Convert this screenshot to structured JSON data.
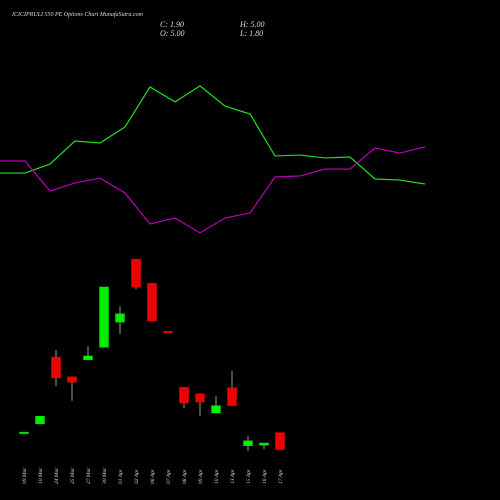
{
  "chart_data": [
    {
      "type": "candlestick",
      "title": "ICICIPRULI 550 PE Options Chart MunafaSutra.com",
      "ohlc_labels": [
        "C: 1.90",
        "H: 5.00",
        "O: 5.00",
        "L: 1.80"
      ],
      "categories": [
        "09 Mar",
        "10 Mar",
        "24 Mar",
        "25 Mar",
        "27 Mar",
        "30 Mar",
        "01 Apr",
        "02 Apr",
        "06 Apr",
        "07 Apr",
        "08 Apr",
        "09 Apr",
        "10 Apr",
        "13 Apr",
        "15 Apr",
        "16 Apr",
        "17 Apr"
      ],
      "open": [
        5.0,
        6.6,
        18.8,
        15.2,
        18.3,
        20.6,
        25.2,
        36.7,
        32.3,
        23.5,
        13.3,
        12.1,
        8.6,
        13.2,
        2.6,
        2.7,
        5.0
      ],
      "high": [
        5.1,
        8.0,
        20.1,
        15.2,
        20.8,
        31.6,
        28.1,
        36.7,
        32.3,
        23.5,
        13.3,
        12.1,
        11.7,
        16.3,
        4.4,
        3.1,
        5.0
      ],
      "low": [
        5.0,
        6.6,
        13.5,
        10.8,
        18.3,
        20.6,
        23.0,
        31.2,
        25.4,
        23.3,
        9.5,
        8.0,
        8.6,
        9.9,
        1.6,
        2.0,
        1.8
      ],
      "close": [
        5.1,
        8.0,
        15.0,
        14.2,
        19.0,
        31.6,
        26.7,
        31.6,
        25.4,
        23.3,
        10.4,
        10.6,
        9.9,
        9.9,
        3.5,
        3.1,
        1.9
      ],
      "up_color": "#00ee00",
      "down_color": "#ee0000",
      "ylim": [
        0,
        38
      ]
    },
    {
      "type": "line",
      "x": [
        0,
        1,
        2,
        3,
        4,
        5,
        6,
        7,
        8,
        9,
        10,
        11,
        12,
        13,
        14,
        15,
        16,
        17
      ],
      "xlim": [
        0,
        17
      ],
      "ylim": [
        0,
        100
      ],
      "series": [
        {
          "color": "#22dd22",
          "values": [
            37.2,
            37.2,
            42.2,
            55,
            53.9,
            62.8,
            85,
            76.7,
            85.6,
            74.4,
            70,
            46.7,
            47.2,
            45.6,
            46.1,
            33.9,
            33.3,
            31.1
          ]
        },
        {
          "color": "#bb00bb",
          "values": [
            43.9,
            43.9,
            27.2,
            31.7,
            34.4,
            26.1,
            8.9,
            12.2,
            3.9,
            12.2,
            15,
            35,
            35.6,
            39.4,
            39.4,
            51.1,
            48.3,
            51.7
          ]
        }
      ]
    }
  ]
}
